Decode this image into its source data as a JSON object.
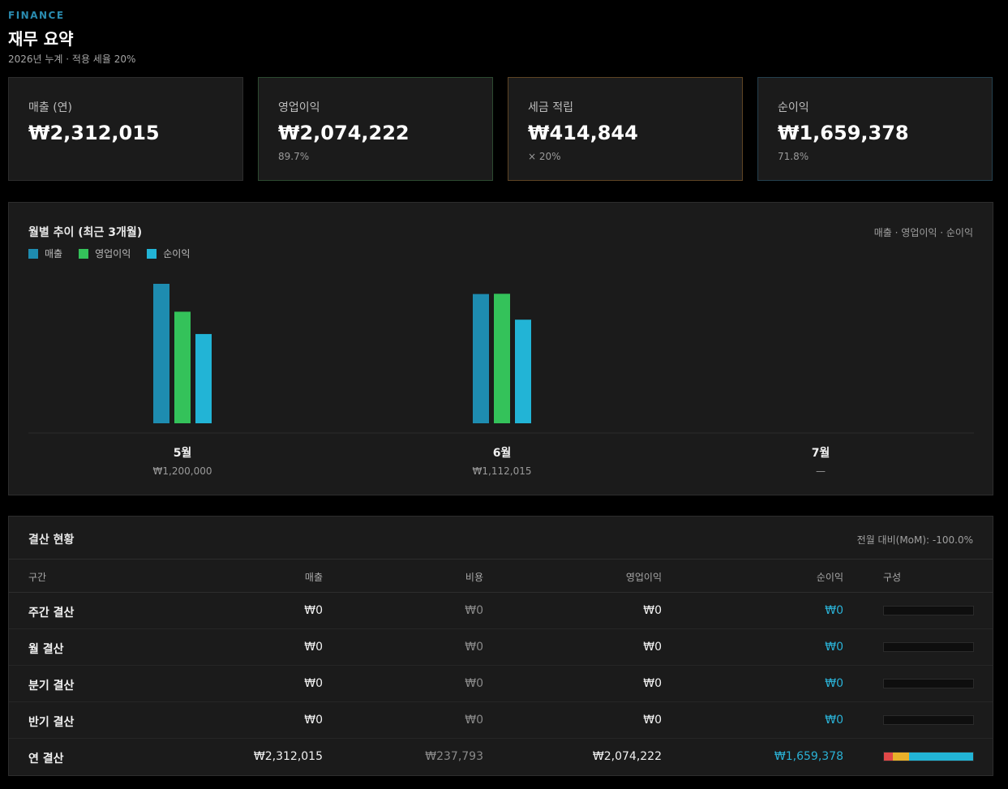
{
  "header": {
    "kicker": "FINANCE",
    "title": "재무 요약",
    "subtitle": "2026년 누계 · 적용 세율 20%"
  },
  "cards": [
    {
      "label": "매출 (연)",
      "value": "₩2,312,015",
      "sub": "",
      "border": "#2d2d2d"
    },
    {
      "label": "영업이익",
      "value": "₩2,074,222",
      "sub": "89.7%",
      "border": "#2c4a30"
    },
    {
      "label": "세금 적립",
      "value": "₩414,844",
      "sub": "× 20%",
      "border": "#5e4424"
    },
    {
      "label": "순이익",
      "value": "₩1,659,378",
      "sub": "71.8%",
      "border": "#24404e"
    }
  ],
  "chart": {
    "title": "월별 추이 (최근 3개월)",
    "right_note": "매출 · 영업이익 · 순이익"
  },
  "colors": {
    "revenue": "#1e8cb0",
    "operating": "#34c25a",
    "net": "#22b4d6",
    "tax": "#e8b02a",
    "cost": "#e04848",
    "accent": "#2a8cb0"
  },
  "chart_data": {
    "type": "bar",
    "categories": [
      "5월",
      "6월",
      "7월"
    ],
    "category_values": [
      "₩1,200,000",
      "₩1,112,015",
      "—"
    ],
    "series": [
      {
        "name": "매출",
        "values": [
          1200000,
          1112015,
          0
        ]
      },
      {
        "name": "영업이익",
        "values": [
          960000,
          1114222,
          0
        ]
      },
      {
        "name": "순이익",
        "values": [
          768000,
          891378,
          0
        ]
      }
    ],
    "ylim": [
      0,
      1200000
    ],
    "legend": "top-left",
    "grid": false
  },
  "table": {
    "title": "결산 현황",
    "right_note": "전월 대비(MoM): -100.0%",
    "headers": {
      "period": "구간",
      "revenue": "매출",
      "cost": "비용",
      "operating": "영업이익",
      "net": "순이익",
      "composition": "구성"
    },
    "rows": [
      {
        "name": "주간 결산",
        "revenue": "₩0",
        "cost": "₩0",
        "operating": "₩0",
        "net": "₩0",
        "comp": [
          0,
          0,
          0
        ]
      },
      {
        "name": "월 결산",
        "revenue": "₩0",
        "cost": "₩0",
        "operating": "₩0",
        "net": "₩0",
        "comp": [
          0,
          0,
          0
        ]
      },
      {
        "name": "분기 결산",
        "revenue": "₩0",
        "cost": "₩0",
        "operating": "₩0",
        "net": "₩0",
        "comp": [
          0,
          0,
          0
        ]
      },
      {
        "name": "반기 결산",
        "revenue": "₩0",
        "cost": "₩0",
        "operating": "₩0",
        "net": "₩0",
        "comp": [
          0,
          0,
          0
        ]
      },
      {
        "name": "연 결산",
        "revenue": "₩2,312,015",
        "cost": "₩237,793",
        "operating": "₩2,074,222",
        "net": "₩1,659,378",
        "comp": [
          0.103,
          0.179,
          0.718
        ]
      }
    ]
  }
}
